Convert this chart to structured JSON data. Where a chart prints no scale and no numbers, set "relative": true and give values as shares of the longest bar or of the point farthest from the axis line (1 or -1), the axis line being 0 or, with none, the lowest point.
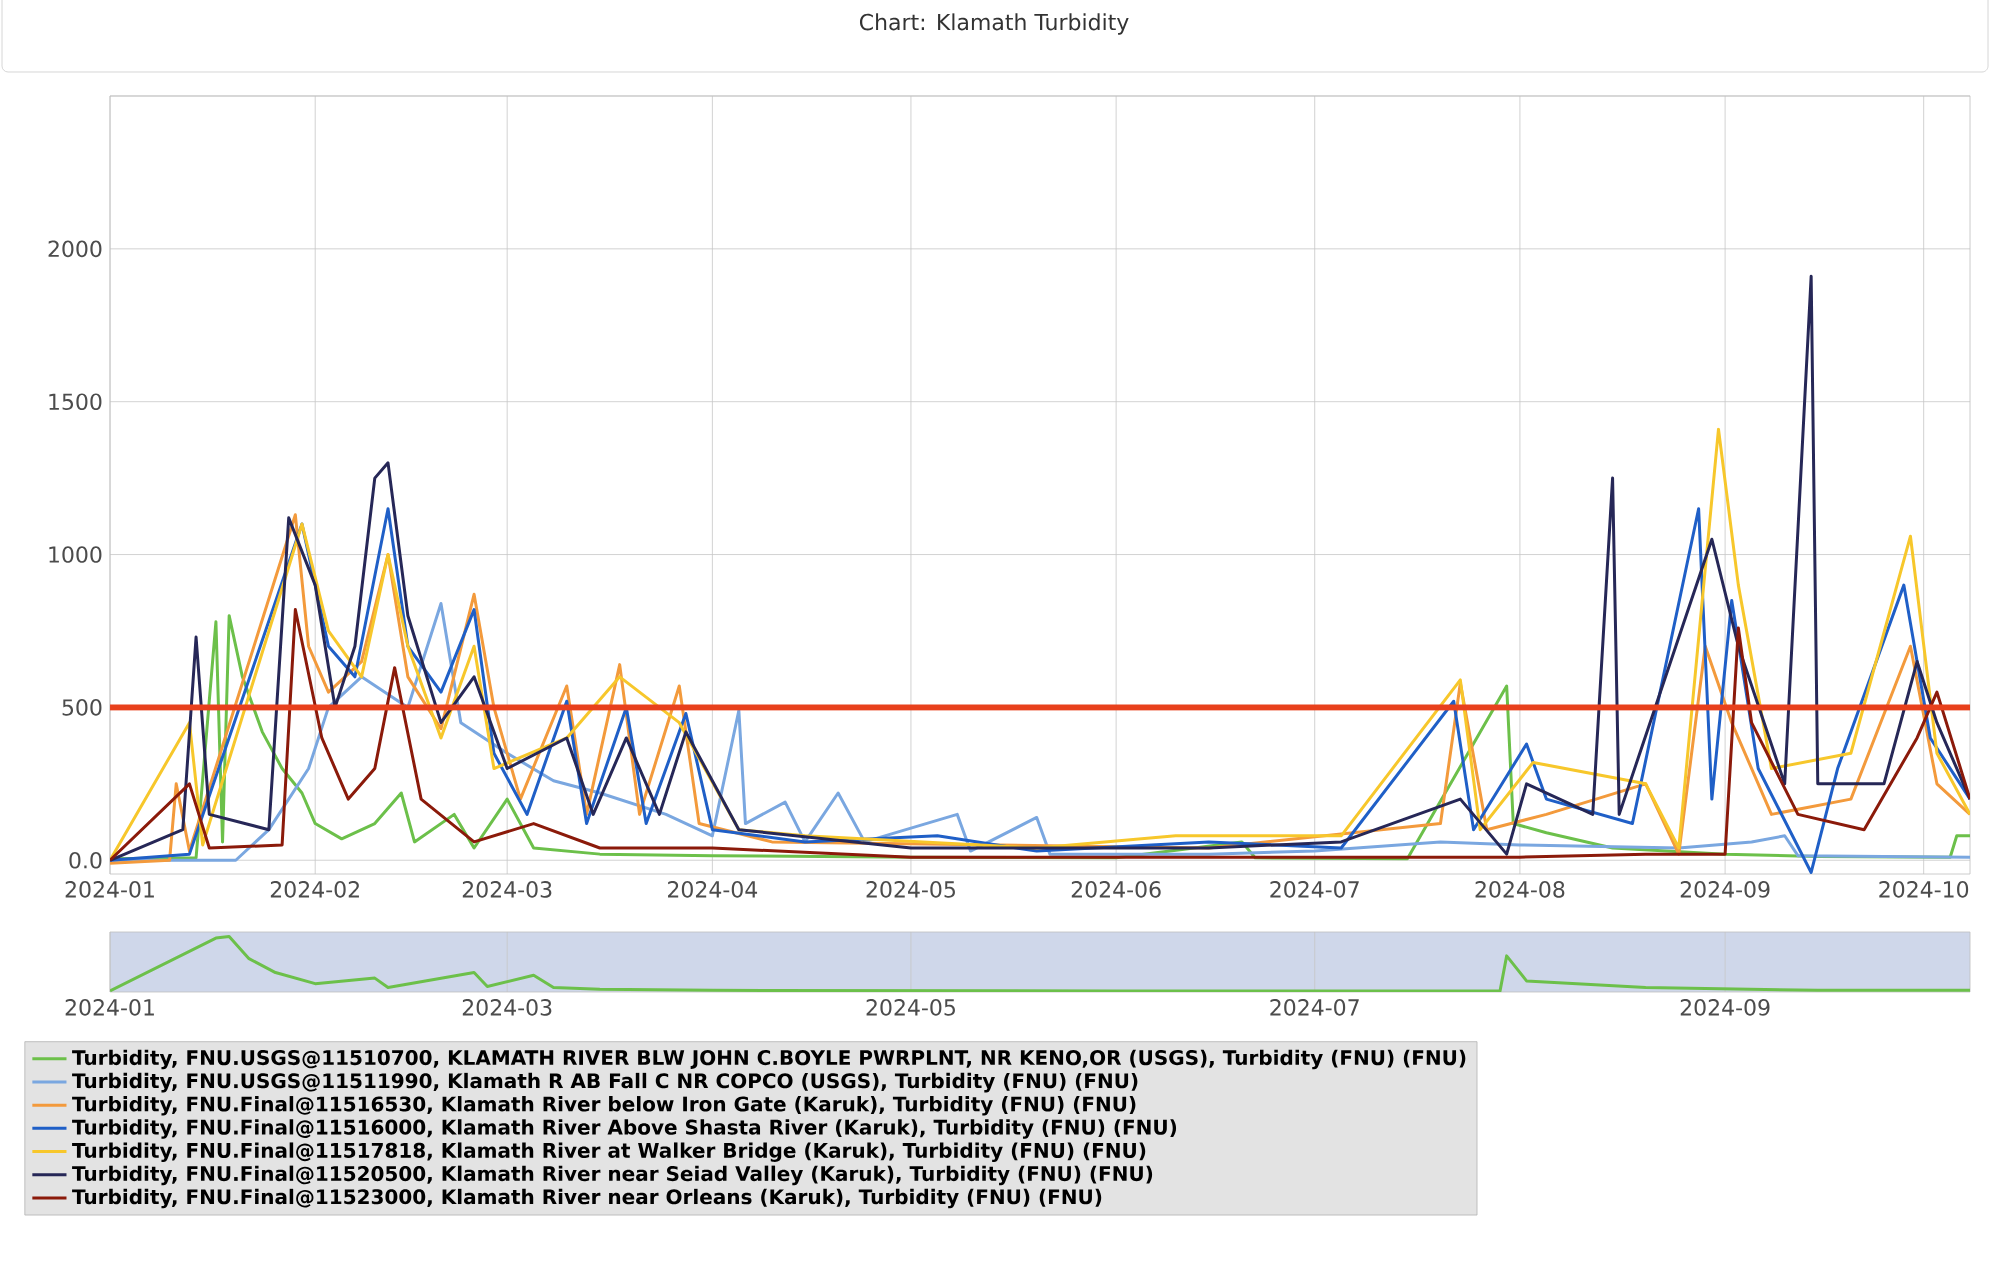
{
  "chart_data": [
    {
      "type": "line",
      "title": "Chart: Klamath Turbidity",
      "xlim": [
        "2024-01-01",
        "2024-10-08"
      ],
      "xticks": [
        "2024-01",
        "2024-02",
        "2024-03",
        "2024-04",
        "2024-05",
        "2024-06",
        "2024-07",
        "2024-08",
        "2024-09",
        "2024-10"
      ],
      "ylim": [
        -45,
        2500
      ],
      "yticks": [
        {
          "value": 0,
          "label": "0.0"
        },
        500,
        1000,
        1500,
        2000,
        {
          "value": 2500,
          "label": null
        }
      ],
      "grid": true,
      "legend": "bottom left",
      "ref_lines": [
        {
          "axis": "y",
          "value": 500,
          "color": "#e8401c"
        }
      ],
      "series": [
        {
          "name": "Turbidity, FNU.USGS@11510700, KLAMATH RIVER BLW JOHN C.BOYLE PWRPLNT, NR KENO,OR (USGS), Turbidity (FNU) (FNU)",
          "color": "#6cc04a",
          "x": [
            "2024-01-01",
            "2024-01-14",
            "2024-01-17",
            "2024-01-18",
            "2024-01-19",
            "2024-01-21",
            "2024-01-24",
            "2024-01-27",
            "2024-01-30",
            "2024-02-01",
            "2024-02-05",
            "2024-02-10",
            "2024-02-14",
            "2024-02-16",
            "2024-02-22",
            "2024-02-25",
            "2024-03-01",
            "2024-03-05",
            "2024-03-15",
            "2024-04-01",
            "2024-05-01",
            "2024-06-01",
            "2024-06-20",
            "2024-06-22",
            "2024-07-15",
            "2024-07-30",
            "2024-07-31",
            "2024-08-05",
            "2024-08-15",
            "2024-09-01",
            "2024-09-15",
            "2024-10-05",
            "2024-10-06",
            "2024-10-08"
          ],
          "values": [
            5,
            8,
            780,
            60,
            800,
            600,
            420,
            300,
            220,
            120,
            70,
            120,
            220,
            60,
            150,
            40,
            200,
            40,
            20,
            15,
            10,
            8,
            60,
            8,
            5,
            570,
            120,
            90,
            40,
            20,
            12,
            10,
            80,
            80
          ]
        },
        {
          "name": "Turbidity, FNU.USGS@11511990, Klamath R AB Fall C NR COPCO (USGS), Turbidity (FNU) (FNU)",
          "color": "#7aa7e0",
          "x": [
            "2024-01-01",
            "2024-01-20",
            "2024-01-25",
            "2024-01-31",
            "2024-02-03",
            "2024-02-08",
            "2024-02-15",
            "2024-02-20",
            "2024-02-23",
            "2024-03-01",
            "2024-03-08",
            "2024-03-15",
            "2024-03-25",
            "2024-04-01",
            "2024-04-05",
            "2024-04-06",
            "2024-04-12",
            "2024-04-15",
            "2024-04-20",
            "2024-04-24",
            "2024-05-08",
            "2024-05-10",
            "2024-05-20",
            "2024-05-22",
            "2024-06-15",
            "2024-07-01",
            "2024-07-20",
            "2024-08-01",
            "2024-08-25",
            "2024-09-05",
            "2024-09-10",
            "2024-09-12",
            "2024-10-08"
          ],
          "values": [
            0,
            0,
            100,
            300,
            500,
            600,
            500,
            840,
            450,
            350,
            260,
            220,
            150,
            80,
            490,
            120,
            190,
            60,
            220,
            60,
            150,
            30,
            140,
            20,
            20,
            30,
            60,
            50,
            40,
            60,
            80,
            15,
            10
          ]
        },
        {
          "name": "Turbidity, FNU.Final@11516530, Klamath River below Iron Gate (Karuk), Turbidity (FNU) (FNU)",
          "color": "#f39a3c",
          "x": [
            "2024-01-01",
            "2024-01-10",
            "2024-01-11",
            "2024-01-13",
            "2024-01-29",
            "2024-01-31",
            "2024-02-03",
            "2024-02-08",
            "2024-02-12",
            "2024-02-15",
            "2024-02-20",
            "2024-02-25",
            "2024-02-28",
            "2024-03-03",
            "2024-03-10",
            "2024-03-13",
            "2024-03-18",
            "2024-03-21",
            "2024-03-27",
            "2024-03-30",
            "2024-04-10",
            "2024-05-20",
            "2024-06-15",
            "2024-07-20",
            "2024-07-23",
            "2024-07-27",
            "2024-08-05",
            "2024-08-20",
            "2024-08-25",
            "2024-08-29",
            "2024-09-02",
            "2024-09-08",
            "2024-09-20",
            "2024-09-29",
            "2024-10-03",
            "2024-10-08"
          ],
          "values": [
            -10,
            0,
            250,
            30,
            1130,
            700,
            550,
            650,
            1000,
            600,
            430,
            870,
            500,
            200,
            570,
            150,
            640,
            150,
            570,
            120,
            60,
            null,
            40,
            120,
            580,
            100,
            150,
            250,
            20,
            700,
            450,
            150,
            200,
            700,
            250,
            150
          ]
        },
        {
          "name": "Turbidity, FNU.Final@11516000, Klamath River Above Shasta River (Karuk), Turbidity (FNU) (FNU)",
          "color": "#1f5fc7",
          "x": [
            "2024-01-01",
            "2024-01-13",
            "2024-01-30",
            "2024-02-03",
            "2024-02-07",
            "2024-02-12",
            "2024-02-15",
            "2024-02-20",
            "2024-02-25",
            "2024-02-28",
            "2024-03-04",
            "2024-03-10",
            "2024-03-13",
            "2024-03-19",
            "2024-03-22",
            "2024-03-28",
            "2024-04-01",
            "2024-04-15",
            "2024-05-05",
            "2024-05-20",
            "2024-06-15",
            "2024-07-05",
            "2024-07-22",
            "2024-07-25",
            "2024-08-02",
            "2024-08-05",
            "2024-08-18",
            "2024-08-28",
            "2024-08-30",
            "2024-09-02",
            "2024-09-06",
            "2024-09-14",
            "2024-09-18",
            "2024-09-28",
            "2024-10-02",
            "2024-10-08"
          ],
          "values": [
            0,
            20,
            1100,
            700,
            600,
            1150,
            700,
            550,
            820,
            350,
            150,
            520,
            120,
            500,
            120,
            480,
            100,
            60,
            80,
            30,
            60,
            40,
            520,
            100,
            380,
            200,
            120,
            1150,
            200,
            850,
            300,
            -40,
            300,
            900,
            400,
            200
          ]
        },
        {
          "name": "Turbidity, FNU.Final@11517818, Klamath River at Walker Bridge (Karuk), Turbidity (FNU) (FNU)",
          "color": "#f7c72b",
          "x": [
            "2024-01-01",
            "2024-01-13",
            "2024-01-15",
            "2024-01-30",
            "2024-02-03",
            "2024-02-08",
            "2024-02-12",
            "2024-02-15",
            "2024-02-20",
            "2024-02-25",
            "2024-02-28",
            "2024-03-10",
            "2024-03-18",
            "2024-03-27",
            "2024-04-05",
            "2024-04-15",
            "2024-05-20",
            "2024-06-10",
            "2024-07-05",
            "2024-07-23",
            "2024-07-26",
            "2024-08-03",
            "2024-08-20",
            "2024-08-25",
            "2024-08-31",
            "2024-09-03",
            "2024-09-08",
            "2024-09-20",
            "2024-09-29",
            "2024-10-03",
            "2024-10-08"
          ],
          "values": [
            0,
            450,
            50,
            1100,
            750,
            600,
            1000,
            700,
            400,
            700,
            300,
            400,
            600,
            450,
            100,
            80,
            40,
            80,
            80,
            590,
            100,
            320,
            250,
            40,
            1410,
            900,
            300,
            350,
            1060,
            350,
            150
          ]
        },
        {
          "name": "Turbidity, FNU.Final@11520500, Klamath River near Seiad Valley (Karuk), Turbidity (FNU) (FNU)",
          "color": "#262757",
          "x": [
            "2024-01-01",
            "2024-01-12",
            "2024-01-14",
            "2024-01-16",
            "2024-01-25",
            "2024-01-28",
            "2024-02-01",
            "2024-02-04",
            "2024-02-07",
            "2024-02-10",
            "2024-02-12",
            "2024-02-15",
            "2024-02-20",
            "2024-02-25",
            "2024-03-01",
            "2024-03-10",
            "2024-03-14",
            "2024-03-19",
            "2024-03-24",
            "2024-03-28",
            "2024-04-05",
            "2024-05-01",
            "2024-06-15",
            "2024-07-05",
            "2024-07-23",
            "2024-07-30",
            "2024-08-02",
            "2024-08-12",
            "2024-08-15",
            "2024-08-16",
            "2024-08-30",
            "2024-09-03",
            "2024-09-10",
            "2024-09-14",
            "2024-09-15",
            "2024-09-25",
            "2024-09-30",
            "2024-10-03",
            "2024-10-08"
          ],
          "values": [
            0,
            100,
            730,
            150,
            100,
            1120,
            900,
            500,
            700,
            1250,
            1300,
            800,
            450,
            600,
            300,
            400,
            150,
            400,
            150,
            420,
            100,
            40,
            40,
            60,
            200,
            20,
            250,
            150,
            1250,
            150,
            1050,
            700,
            250,
            1910,
            250,
            250,
            650,
            450,
            200
          ]
        },
        {
          "name": "Turbidity, FNU.Final@11523000, Klamath River near Orleans (Karuk), Turbidity (FNU) (FNU)",
          "color": "#8b1a0a",
          "x": [
            "2024-01-01",
            "2024-01-13",
            "2024-01-16",
            "2024-01-27",
            "2024-01-29",
            "2024-02-02",
            "2024-02-06",
            "2024-02-10",
            "2024-02-13",
            "2024-02-17",
            "2024-02-25",
            "2024-03-05",
            "2024-03-15",
            "2024-04-01",
            "2024-05-01",
            "2024-07-01",
            "2024-08-01",
            "2024-08-20",
            "2024-09-01",
            "2024-09-03",
            "2024-09-05",
            "2024-09-12",
            "2024-09-22",
            "2024-09-30",
            "2024-10-03",
            "2024-10-08"
          ],
          "values": [
            0,
            250,
            40,
            50,
            820,
            400,
            200,
            300,
            630,
            200,
            60,
            120,
            40,
            40,
            10,
            10,
            10,
            20,
            20,
            760,
            450,
            150,
            100,
            400,
            550,
            200
          ]
        }
      ]
    },
    {
      "type": "line",
      "relative": true,
      "tick_labels": "x",
      "grid": "x",
      "xlim": [
        "2024-01-01",
        "2024-10-08"
      ],
      "xticks": [
        "2024-01",
        "2024-03",
        "2024-05",
        "2024-07",
        "2024-09"
      ],
      "series": [
        {
          "color": "#6cc04a",
          "x": [
            "2024-01-01",
            "2024-01-17",
            "2024-01-19",
            "2024-01-22",
            "2024-01-26",
            "2024-02-01",
            "2024-02-10",
            "2024-02-12",
            "2024-02-25",
            "2024-02-27",
            "2024-03-05",
            "2024-03-08",
            "2024-03-15",
            "2024-04-01",
            "2024-06-01",
            "2024-07-29",
            "2024-07-30",
            "2024-08-02",
            "2024-08-20",
            "2024-09-15",
            "2024-10-08"
          ],
          "values": [
            0.02,
            0.97,
            1,
            0.6,
            0.35,
            0.15,
            0.25,
            0.08,
            0.35,
            0.1,
            0.3,
            0.08,
            0.05,
            0.03,
            0.02,
            0.02,
            0.65,
            0.2,
            0.08,
            0.03,
            0.03
          ]
        }
      ]
    }
  ]
}
